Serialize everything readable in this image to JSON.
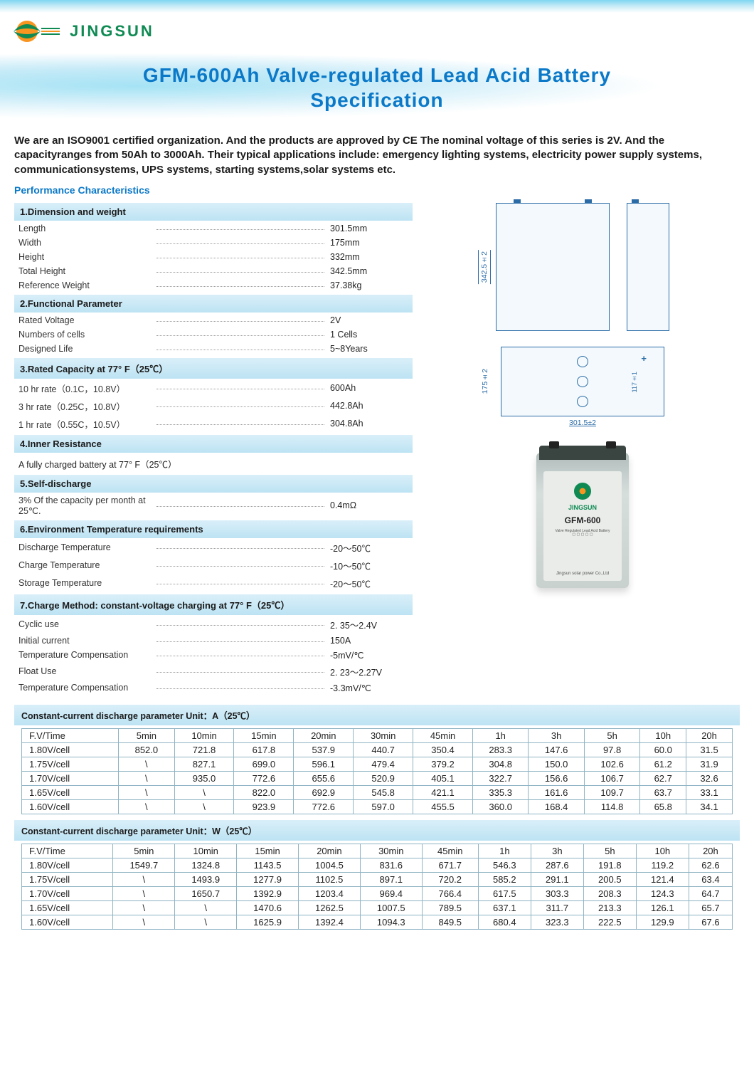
{
  "brand": "JINGSUN",
  "title_l1": "GFM-600Ah Valve-regulated Lead Acid Battery",
  "title_l2": "Specification",
  "intro": "We are an ISO9001 certified organization. And the products are approved by CE        The nominal voltage of this series is 2V. And the capacityranges from 50Ah to 3000Ah. Their typical applications include: emergency lighting systems, electricity power supply systems, communicationsystems, UPS systems, starting systems,solar systems etc.",
  "perf_head": "Performance Characteristics",
  "sections": {
    "s1": {
      "head": "1.Dimension and weight",
      "rows": [
        {
          "label": "Length",
          "value": "301.5mm"
        },
        {
          "label": "Width",
          "value": "175mm"
        },
        {
          "label": "Height",
          "value": "332mm"
        },
        {
          "label": "Total Height",
          "value": "342.5mm"
        },
        {
          "label": "Reference Weight",
          "value": "37.38kg"
        }
      ]
    },
    "s2": {
      "head": "2.Functional Parameter",
      "rows": [
        {
          "label": "Rated Voltage",
          "value": "2V"
        },
        {
          "label": "Numbers of cells",
          "value": "1 Cells"
        },
        {
          "label": "Designed Life",
          "value": "5~8Years"
        }
      ]
    },
    "s3": {
      "head": "3.Rated Capacity at 77° F（25℃）",
      "rows": [
        {
          "label": "10 hr rate（0.1C，10.8V）",
          "value": "600Ah"
        },
        {
          "label": "3 hr rate（0.25C，10.8V）",
          "value": "442.8Ah"
        },
        {
          "label": "1 hr rate（0.55C，10.5V）",
          "value": "304.8Ah"
        }
      ]
    },
    "s4": {
      "head": "4.Inner Resistance",
      "note": "A fully charged battery at 77° F（25℃）"
    },
    "s5": {
      "head": "5.Self-discharge",
      "rows": [
        {
          "label": "3%  Of  the capacity per month at 25℃.",
          "value": "0.4mΩ"
        }
      ]
    },
    "s6": {
      "head": "6.Environment Temperature requirements",
      "rows": [
        {
          "label": "Discharge Temperature",
          "value": "-20～50℃"
        },
        {
          "label": "Charge Temperature",
          "value": "-10～50℃"
        },
        {
          "label": "Storage Temperature",
          "value": "-20～50℃"
        }
      ]
    },
    "s7": {
      "head": "7.Charge Method: constant-voltage charging at 77° F（25℃）",
      "rows": [
        {
          "label": "Cyclic use",
          "value": "2. 35～2.4V"
        },
        {
          "label": "Initial current",
          "value": "150A"
        },
        {
          "label": "Temperature Compensation",
          "value": "-5mV/℃"
        },
        {
          "label": "Float Use",
          "value": "2. 23～2.27V"
        },
        {
          "label": "Temperature Compensation",
          "value": "-3.3mV/℃"
        }
      ]
    }
  },
  "dims": {
    "height_dim": "342.5±2",
    "top_width_dim": "301.5±2",
    "top_height_dim": "175±2",
    "terminal_spacing": "117±1"
  },
  "battery_photo": {
    "brand": "JINGSUN",
    "model": "GFM-600",
    "footer": "Jingsun solar power Co.,Ltd"
  },
  "table1_head": "Constant-current discharge parameter  Unit：A（25℃）",
  "table2_head": "Constant-current discharge parameter  Unit：W（25℃）",
  "tcols": [
    "F.V/Time",
    "5min",
    "10min",
    "15min",
    "20min",
    "30min",
    "45min",
    "1h",
    "3h",
    "5h",
    "10h",
    "20h"
  ],
  "t1": [
    [
      "1.80V/cell",
      "852.0",
      "721.8",
      "617.8",
      "537.9",
      "440.7",
      "350.4",
      "283.3",
      "147.6",
      "97.8",
      "60.0",
      "31.5"
    ],
    [
      "1.75V/cell",
      "\\",
      "827.1",
      "699.0",
      "596.1",
      "479.4",
      "379.2",
      "304.8",
      "150.0",
      "102.6",
      "61.2",
      "31.9"
    ],
    [
      "1.70V/cell",
      "\\",
      "935.0",
      "772.6",
      "655.6",
      "520.9",
      "405.1",
      "322.7",
      "156.6",
      "106.7",
      "62.7",
      "32.6"
    ],
    [
      "1.65V/cell",
      "\\",
      "\\",
      "822.0",
      "692.9",
      "545.8",
      "421.1",
      "335.3",
      "161.6",
      "109.7",
      "63.7",
      "33.1"
    ],
    [
      "1.60V/cell",
      "\\",
      "\\",
      "923.9",
      "772.6",
      "597.0",
      "455.5",
      "360.0",
      "168.4",
      "114.8",
      "65.8",
      "34.1"
    ]
  ],
  "t2": [
    [
      "1.80V/cell",
      "1549.7",
      "1324.8",
      "1143.5",
      "1004.5",
      "831.6",
      "671.7",
      "546.3",
      "287.6",
      "191.8",
      "119.2",
      "62.6"
    ],
    [
      "1.75V/cell",
      "\\",
      "1493.9",
      "1277.9",
      "1102.5",
      "897.1",
      "720.2",
      "585.2",
      "291.1",
      "200.5",
      "121.4",
      "63.4"
    ],
    [
      "1.70V/cell",
      "\\",
      "1650.7",
      "1392.9",
      "1203.4",
      "969.4",
      "766.4",
      "617.5",
      "303.3",
      "208.3",
      "124.3",
      "64.7"
    ],
    [
      "1.65V/cell",
      "\\",
      "\\",
      "1470.6",
      "1262.5",
      "1007.5",
      "789.5",
      "637.1",
      "311.7",
      "213.3",
      "126.1",
      "65.7"
    ],
    [
      "1.60V/cell",
      "\\",
      "\\",
      "1625.9",
      "1392.4",
      "1094.3",
      "849.5",
      "680.4",
      "323.3",
      "222.5",
      "129.9",
      "67.6"
    ]
  ],
  "colors": {
    "title": "#0b79c8",
    "section_bg": "#cfe9f6",
    "border": "#8fb4c4",
    "brand": "#0f8a53"
  }
}
